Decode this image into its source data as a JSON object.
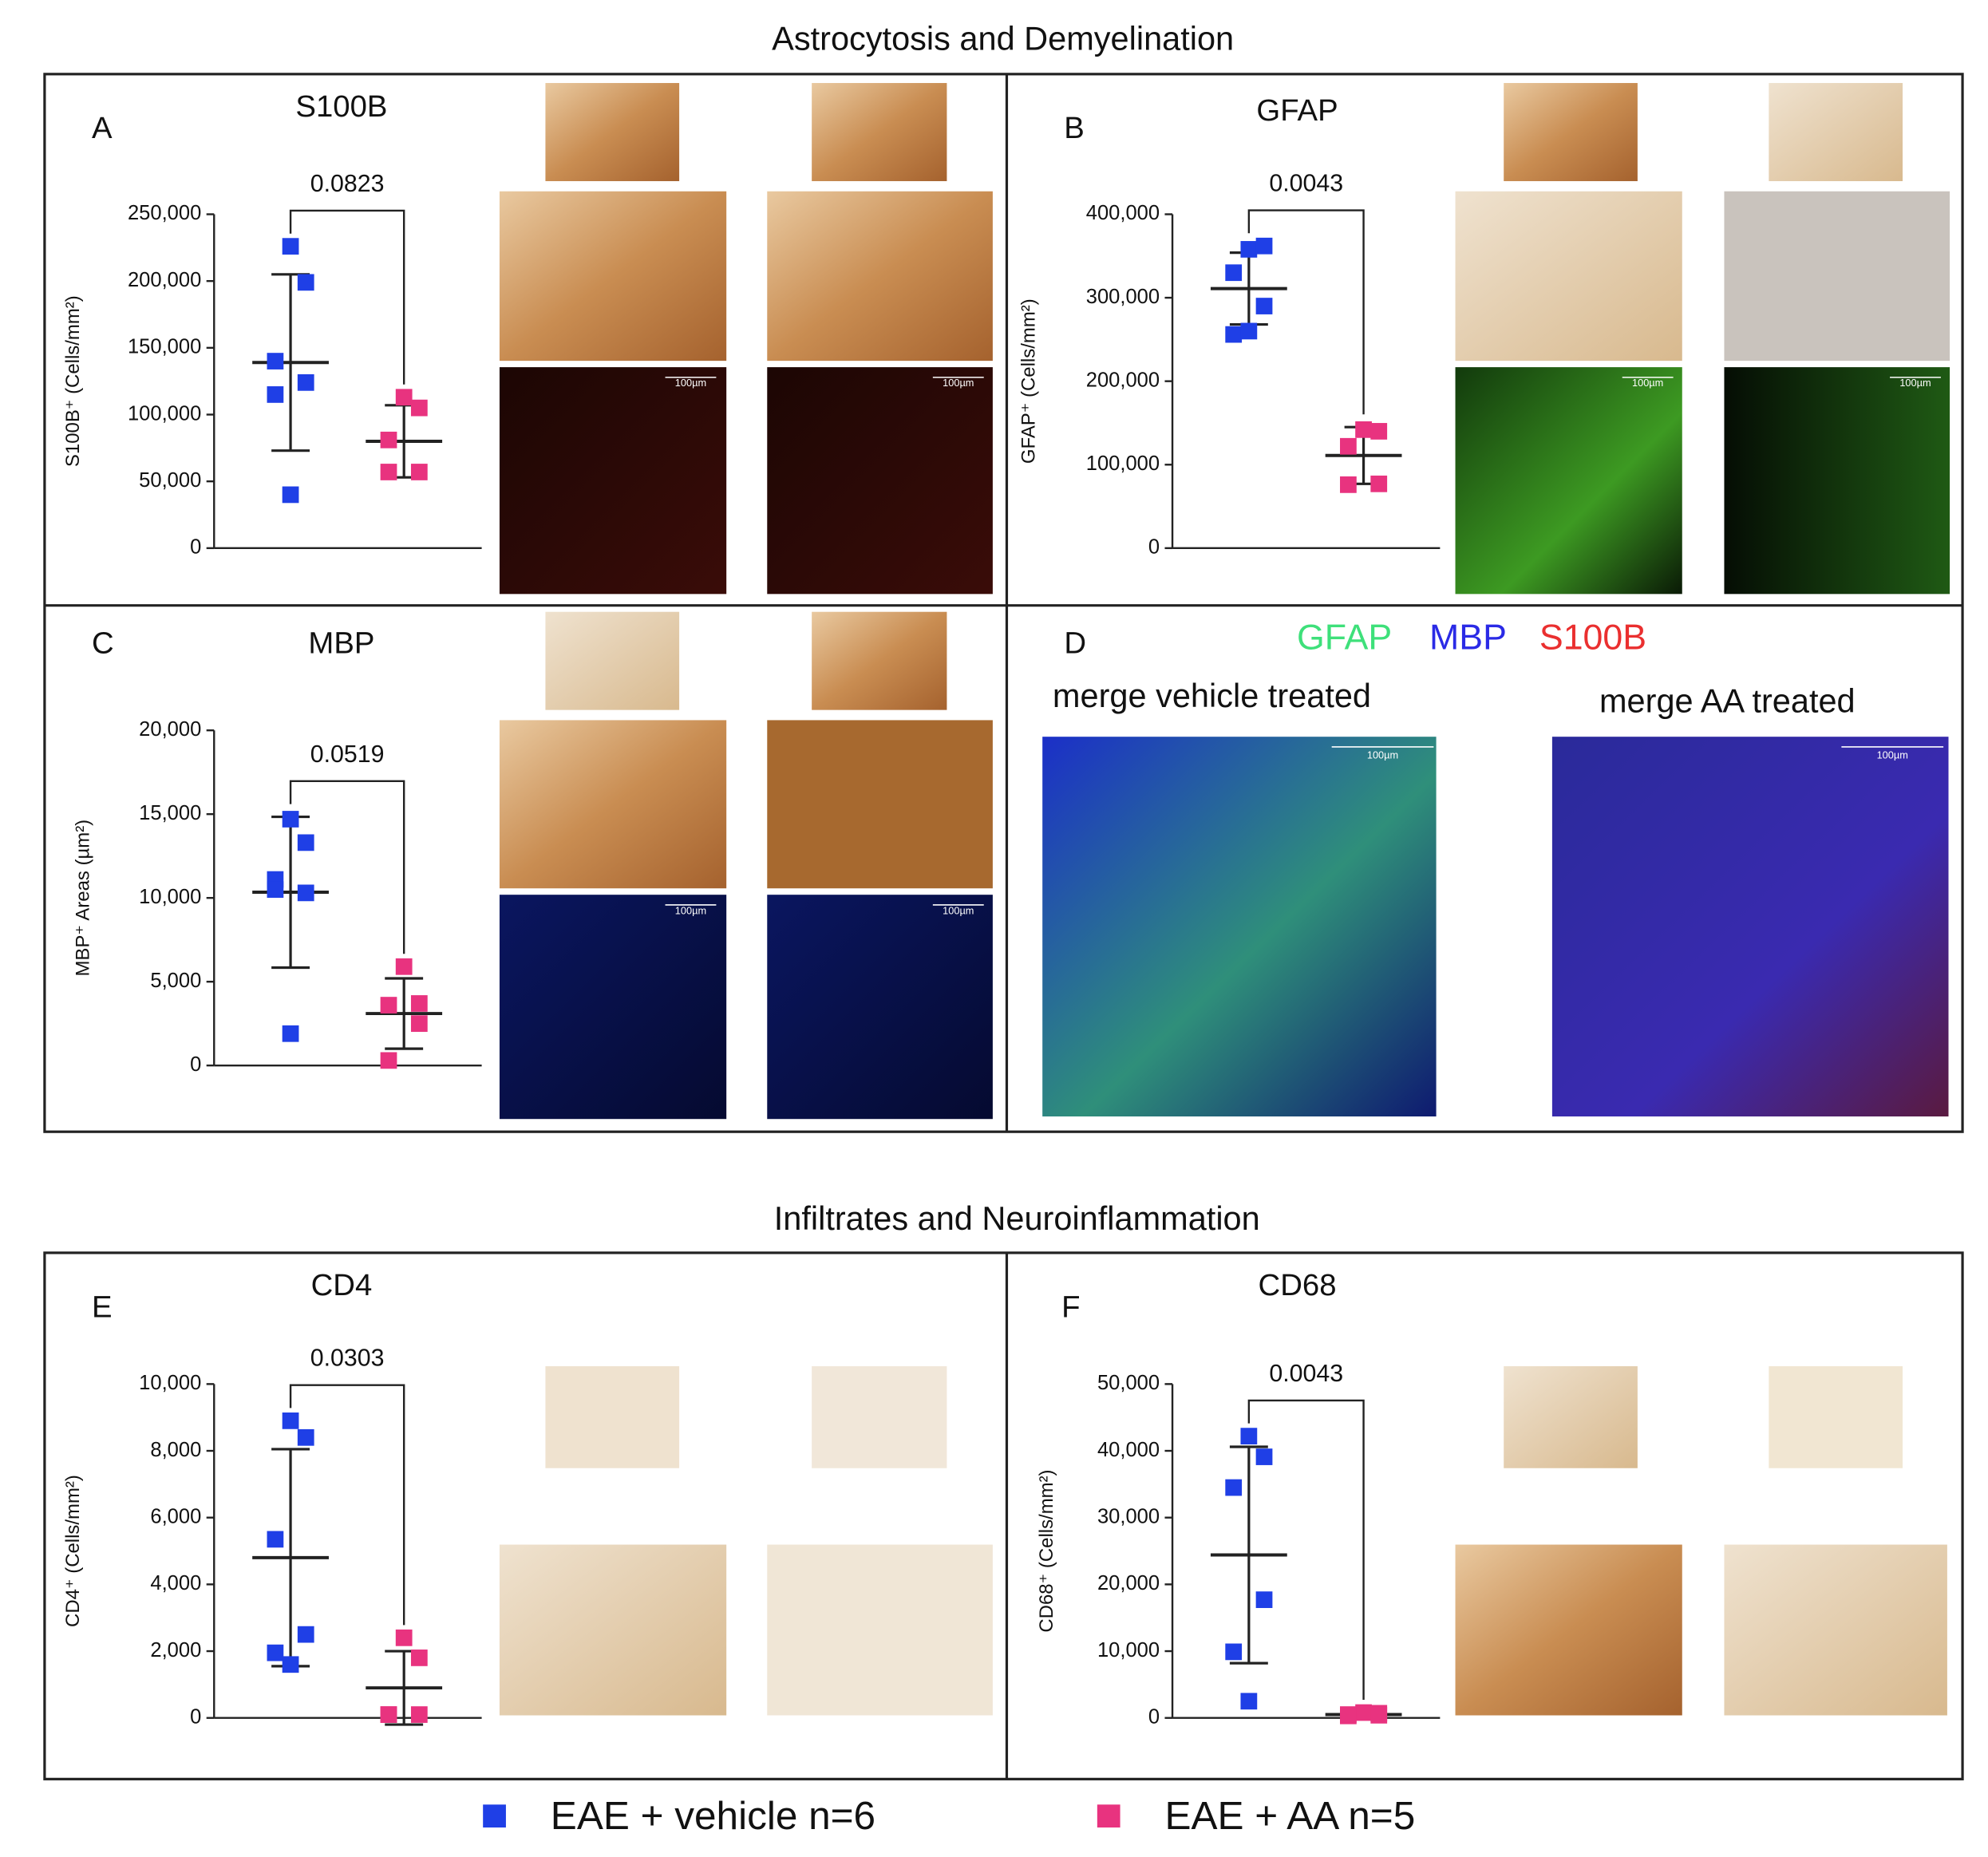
{
  "heading_top": "Astrocytosis and Demyelination",
  "heading_bottom": "Infiltrates and Neuroinflammation",
  "scale_label": "100µm",
  "panel_d": {
    "letter": "D",
    "channels": [
      {
        "name": "GFAP",
        "color": "#3ee07a"
      },
      {
        "name": "MBP",
        "color": "#2a2ae6"
      },
      {
        "name": "S100B",
        "color": "#ea2f2f"
      }
    ],
    "left_caption": "merge vehicle treated",
    "right_caption": "merge AA treated"
  },
  "chart_data": [
    {
      "type": "scatter",
      "letter": "A",
      "title": "S100B",
      "ylabel": "S100B⁺ (Cells/mm²)",
      "annotation": "0.0823",
      "ylim": [
        0,
        250000
      ],
      "yticks": [
        0,
        {
          "value": 50000,
          "label": "50,000"
        },
        {
          "value": 100000,
          "label": "100,000"
        },
        {
          "value": 150000,
          "label": "150,000"
        },
        {
          "value": 200000,
          "label": "200,000"
        },
        {
          "value": 250000,
          "label": "250,000"
        }
      ],
      "series": [
        {
          "name": "EAE + vehicle n=6",
          "color": "#1f3fe6",
          "values": [
            226000,
            199000,
            140000,
            124000,
            115000,
            40000
          ],
          "mean": 139000,
          "sd": 66000
        },
        {
          "name": "EAE + AA n=5",
          "color": "#e8337f",
          "values": [
            113000,
            105000,
            81000,
            57000,
            57000
          ],
          "mean": 80000,
          "sd": 27000
        }
      ]
    },
    {
      "type": "scatter",
      "letter": "B",
      "title": "GFAP",
      "ylabel": "GFAP⁺ (Cells/mm²)",
      "annotation": "0.0043",
      "ylim": [
        0,
        400000
      ],
      "yticks": [
        0,
        {
          "value": 100000,
          "label": "100,000"
        },
        {
          "value": 200000,
          "label": "200,000"
        },
        {
          "value": 300000,
          "label": "300,000"
        },
        {
          "value": 400000,
          "label": "400,000"
        }
      ],
      "series": [
        {
          "name": "EAE + vehicle n=6",
          "color": "#1f3fe6",
          "values": [
            358000,
            362000,
            330000,
            290000,
            256000,
            260000
          ],
          "mean": 311000,
          "sd": 43000
        },
        {
          "name": "EAE + AA n=5",
          "color": "#e8337f",
          "values": [
            142000,
            140000,
            122000,
            77000,
            76000
          ],
          "mean": 111000,
          "sd": 34000
        }
      ]
    },
    {
      "type": "scatter",
      "letter": "C",
      "title": "MBP",
      "ylabel": "MBP⁺ Areas (µm²)",
      "annotation": "0.0519",
      "ylim": [
        0,
        20000
      ],
      "yticks": [
        0,
        {
          "value": 5000,
          "label": "5,000"
        },
        {
          "value": 10000,
          "label": "10,000"
        },
        {
          "value": 15000,
          "label": "15,000"
        },
        {
          "value": 20000,
          "label": "20,000"
        }
      ],
      "series": [
        {
          "name": "EAE + vehicle n=6",
          "color": "#1f3fe6",
          "values": [
            14700,
            13300,
            11100,
            10300,
            10500,
            1900
          ],
          "mean": 10340,
          "sd": 4500
        },
        {
          "name": "EAE + AA n=5",
          "color": "#e8337f",
          "values": [
            5900,
            3700,
            3600,
            2500,
            300
          ],
          "mean": 3100,
          "sd": 2100
        }
      ]
    },
    {
      "type": "scatter",
      "letter": "E",
      "title": "CD4",
      "ylabel": "CD4⁺ (Cells/mm²)",
      "annotation": "0.0303",
      "ylim": [
        0,
        10000
      ],
      "yticks": [
        0,
        {
          "value": 2000,
          "label": "2,000"
        },
        {
          "value": 4000,
          "label": "4,000"
        },
        {
          "value": 6000,
          "label": "6,000"
        },
        {
          "value": 8000,
          "label": "8,000"
        },
        {
          "value": 10000,
          "label": "10,000"
        }
      ],
      "series": [
        {
          "name": "EAE + vehicle n=6",
          "color": "#1f3fe6",
          "values": [
            8900,
            8400,
            5350,
            2500,
            1950,
            1600
          ],
          "mean": 4800,
          "sd": 3250
        },
        {
          "name": "EAE + AA n=5",
          "color": "#e8337f",
          "values": [
            2400,
            1800,
            100,
            100,
            100
          ],
          "mean": 900,
          "sd": 1100
        }
      ]
    },
    {
      "type": "scatter",
      "letter": "F",
      "title": "CD68",
      "ylabel": "CD68⁺ (Cells/mm²)",
      "annotation": "0.0043",
      "ylim": [
        0,
        50000
      ],
      "yticks": [
        0,
        {
          "value": 10000,
          "label": "10,000"
        },
        {
          "value": 20000,
          "label": "20,000"
        },
        {
          "value": 30000,
          "label": "30,000"
        },
        {
          "value": 40000,
          "label": "40,000"
        },
        {
          "value": 50000,
          "label": "50,000"
        }
      ],
      "series": [
        {
          "name": "EAE + vehicle n=6",
          "color": "#1f3fe6",
          "values": [
            42200,
            39100,
            34500,
            17700,
            9900,
            2500
          ],
          "mean": 24400,
          "sd": 16200
        },
        {
          "name": "EAE + AA n=5",
          "color": "#e8337f",
          "values": [
            800,
            700,
            500,
            400,
            300
          ],
          "mean": 500,
          "sd": 200
        }
      ]
    }
  ]
}
